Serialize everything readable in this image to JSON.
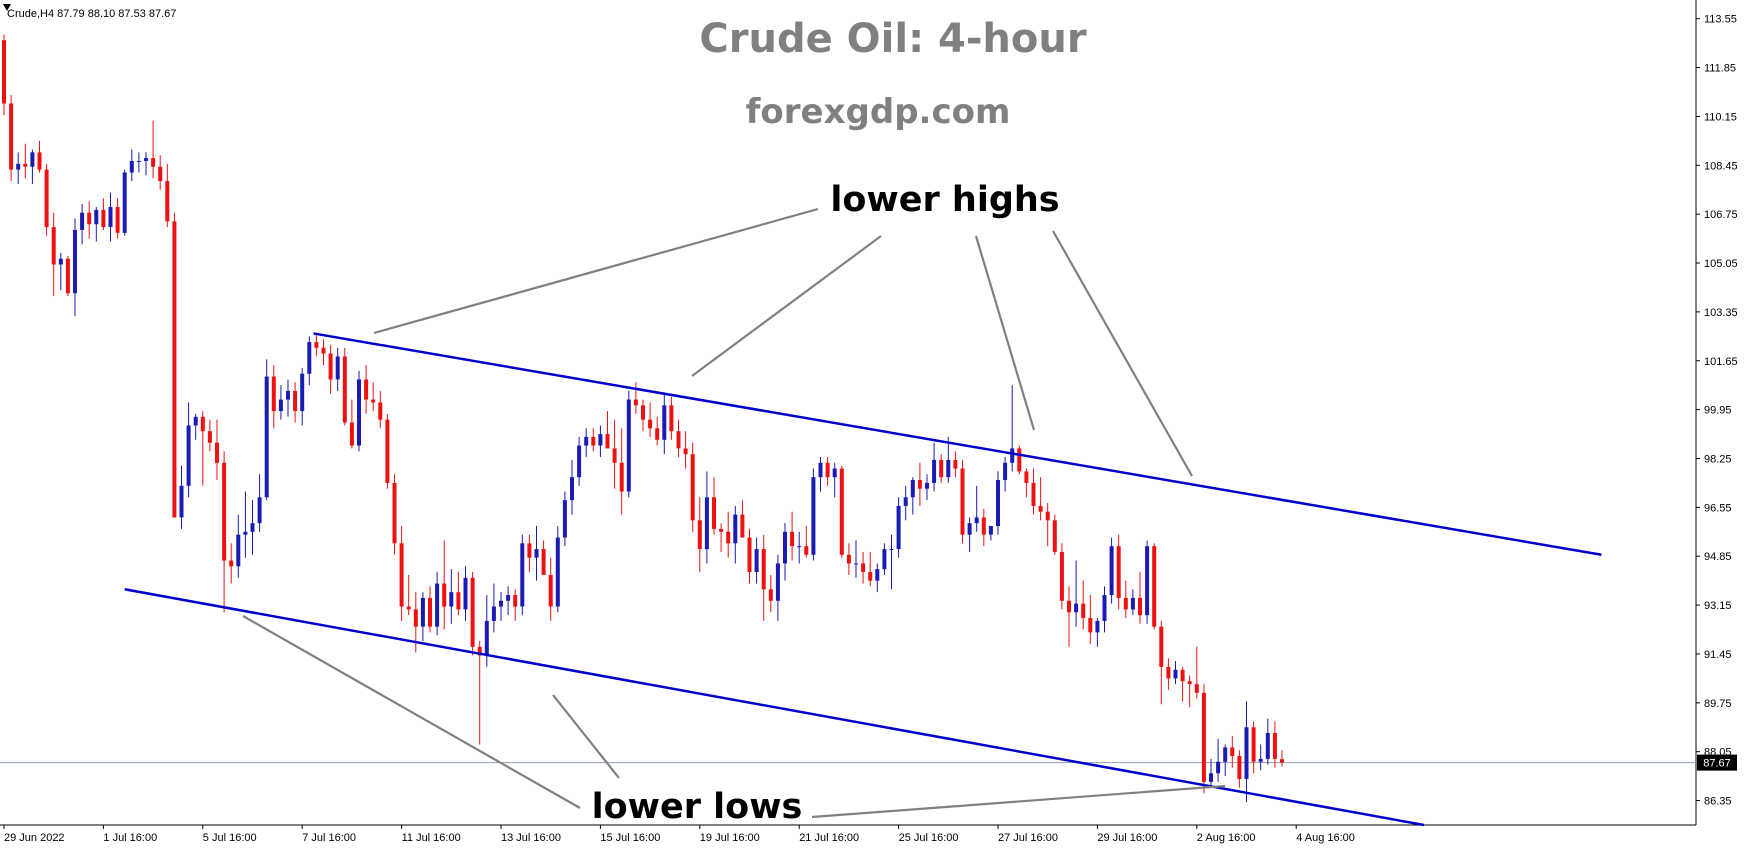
{
  "header": {
    "info_label": "Crude,H4  87.79 88.10 87.53 87.67",
    "title": "Crude Oil: 4-hour",
    "subtitle": "forexgdp.com"
  },
  "annotations": {
    "top_label": "lower highs",
    "bottom_label": "lower lows"
  },
  "colors": {
    "bull": "#1a1ab5",
    "bear": "#ee1111",
    "channel": "#0000cc",
    "arrow": "#808080",
    "current_line": "#8ea0b5",
    "price_box": "#000000"
  },
  "chart_data": {
    "type": "candlestick",
    "symbol": "Crude",
    "timeframe": "H4",
    "title": "Crude Oil: 4-hour",
    "subtitle": "forexgdp.com",
    "last_price": "87.67",
    "ylim": [
      85.5,
      114.2
    ],
    "y_ticks": [
      "113.55",
      "111.85",
      "110.15",
      "108.45",
      "106.75",
      "105.05",
      "103.35",
      "101.65",
      "99.95",
      "98.25",
      "96.55",
      "94.85",
      "93.15",
      "91.45",
      "89.75",
      "88.05",
      "86.35"
    ],
    "x_ticks": [
      "29 Jun 2022",
      "1 Jul 16:00",
      "5 Jul 16:00",
      "7 Jul 16:00",
      "11 Jul 16:00",
      "13 Jul 16:00",
      "15 Jul 16:00",
      "19 Jul 16:00",
      "21 Jul 16:00",
      "25 Jul 16:00",
      "27 Jul 16:00",
      "29 Jul 16:00",
      "2 Aug 16:00",
      "4 Aug 16:00"
    ],
    "bars_per_day": 6,
    "ohlc": [
      [
        112.8,
        113.0,
        110.2,
        110.6
      ],
      [
        110.6,
        110.9,
        107.9,
        108.3
      ],
      [
        108.3,
        108.9,
        107.8,
        108.5
      ],
      [
        108.5,
        109.2,
        108.0,
        108.4
      ],
      [
        108.4,
        109.0,
        107.8,
        108.9
      ],
      [
        108.9,
        109.3,
        108.2,
        108.3
      ],
      [
        108.3,
        108.5,
        106.0,
        106.3
      ],
      [
        106.3,
        106.8,
        103.9,
        105.0
      ],
      [
        105.0,
        105.4,
        104.1,
        105.2
      ],
      [
        105.2,
        105.3,
        103.9,
        104.0
      ],
      [
        104.0,
        106.6,
        103.2,
        106.2
      ],
      [
        106.2,
        107.1,
        105.7,
        106.8
      ],
      [
        106.8,
        107.2,
        105.9,
        106.4
      ],
      [
        106.4,
        107.0,
        105.8,
        106.9
      ],
      [
        106.9,
        107.3,
        106.2,
        106.3
      ],
      [
        106.3,
        107.5,
        105.8,
        107.0
      ],
      [
        107.0,
        107.3,
        105.9,
        106.1
      ],
      [
        106.1,
        108.3,
        106.0,
        108.2
      ],
      [
        108.2,
        109.0,
        107.9,
        108.6
      ],
      [
        108.6,
        108.9,
        108.2,
        108.6
      ],
      [
        108.6,
        108.9,
        108.1,
        108.7
      ],
      [
        108.7,
        110.0,
        108.0,
        108.4
      ],
      [
        108.4,
        108.8,
        107.6,
        107.9
      ],
      [
        107.9,
        108.5,
        106.3,
        106.5
      ],
      [
        106.5,
        106.8,
        96.2,
        96.2
      ],
      [
        96.2,
        98.0,
        95.8,
        97.3
      ],
      [
        97.3,
        100.2,
        96.9,
        99.4
      ],
      [
        99.4,
        99.8,
        98.9,
        99.7
      ],
      [
        99.7,
        99.9,
        97.3,
        99.2
      ],
      [
        99.2,
        99.6,
        98.5,
        98.8
      ],
      [
        98.8,
        99.6,
        97.5,
        98.1
      ],
      [
        98.1,
        98.5,
        92.9,
        94.7
      ],
      [
        94.7,
        95.3,
        93.9,
        94.5
      ],
      [
        94.5,
        96.3,
        94.1,
        95.6
      ],
      [
        95.6,
        97.1,
        94.8,
        95.7
      ],
      [
        95.7,
        96.8,
        94.9,
        96.0
      ],
      [
        96.0,
        97.7,
        95.7,
        96.9
      ],
      [
        96.9,
        101.7,
        96.8,
        101.1
      ],
      [
        101.1,
        101.5,
        99.3,
        99.9
      ],
      [
        99.9,
        100.8,
        99.6,
        100.3
      ],
      [
        100.3,
        101.0,
        99.7,
        100.6
      ],
      [
        100.6,
        100.9,
        99.5,
        99.9
      ],
      [
        99.9,
        101.4,
        99.4,
        101.2
      ],
      [
        101.2,
        102.5,
        100.8,
        102.3
      ],
      [
        102.3,
        102.6,
        101.8,
        102.1
      ],
      [
        102.1,
        102.4,
        101.5,
        101.9
      ],
      [
        101.9,
        102.2,
        100.5,
        101.0
      ],
      [
        101.0,
        102.1,
        100.6,
        101.8
      ],
      [
        101.8,
        102.1,
        99.4,
        99.5
      ],
      [
        99.5,
        100.3,
        98.6,
        98.7
      ],
      [
        98.7,
        101.3,
        98.5,
        101.0
      ],
      [
        101.0,
        101.5,
        99.8,
        100.3
      ],
      [
        100.3,
        100.9,
        99.9,
        100.2
      ],
      [
        100.2,
        100.6,
        99.3,
        99.6
      ],
      [
        99.6,
        99.8,
        97.2,
        97.4
      ],
      [
        97.4,
        97.7,
        94.9,
        95.3
      ],
      [
        95.3,
        95.9,
        92.6,
        93.1
      ],
      [
        93.1,
        94.2,
        92.8,
        93.0
      ],
      [
        93.0,
        93.6,
        91.5,
        92.4
      ],
      [
        92.4,
        93.6,
        91.9,
        93.4
      ],
      [
        93.4,
        93.8,
        92.2,
        92.4
      ],
      [
        92.4,
        94.3,
        92.1,
        93.9
      ],
      [
        93.9,
        95.4,
        92.3,
        93.1
      ],
      [
        93.1,
        94.4,
        92.5,
        93.6
      ],
      [
        93.6,
        94.3,
        92.8,
        93.0
      ],
      [
        93.0,
        94.5,
        92.6,
        94.1
      ],
      [
        94.1,
        94.3,
        91.4,
        91.7
      ],
      [
        91.7,
        91.9,
        88.3,
        91.4
      ],
      [
        91.4,
        93.5,
        91.0,
        92.6
      ],
      [
        92.6,
        93.9,
        92.2,
        93.1
      ],
      [
        93.1,
        93.6,
        92.6,
        93.3
      ],
      [
        93.3,
        93.8,
        92.8,
        93.5
      ],
      [
        93.5,
        93.7,
        92.6,
        93.1
      ],
      [
        93.1,
        95.6,
        92.8,
        95.3
      ],
      [
        95.3,
        95.6,
        94.3,
        94.8
      ],
      [
        94.8,
        95.9,
        94.0,
        95.1
      ],
      [
        95.1,
        95.4,
        94.3,
        94.2
      ],
      [
        94.2,
        94.8,
        92.6,
        93.1
      ],
      [
        93.1,
        95.9,
        92.9,
        95.5
      ],
      [
        95.5,
        97.1,
        95.2,
        96.8
      ],
      [
        96.8,
        98.2,
        96.3,
        97.6
      ],
      [
        97.6,
        99.0,
        97.3,
        98.7
      ],
      [
        98.7,
        99.3,
        98.3,
        99.0
      ],
      [
        99.0,
        99.3,
        98.5,
        98.7
      ],
      [
        98.7,
        99.4,
        98.3,
        99.1
      ],
      [
        99.1,
        99.9,
        98.8,
        98.6
      ],
      [
        98.6,
        99.6,
        97.2,
        98.1
      ],
      [
        98.1,
        99.3,
        96.3,
        97.1
      ],
      [
        97.1,
        100.6,
        96.9,
        100.3
      ],
      [
        100.3,
        100.9,
        99.8,
        100.1
      ],
      [
        100.1,
        100.3,
        99.2,
        99.6
      ],
      [
        99.6,
        100.2,
        99.0,
        99.3
      ],
      [
        99.3,
        99.7,
        98.7,
        98.9
      ],
      [
        98.9,
        100.5,
        98.4,
        100.1
      ],
      [
        100.1,
        100.4,
        98.9,
        99.2
      ],
      [
        99.2,
        99.6,
        98.3,
        98.6
      ],
      [
        98.6,
        99.2,
        97.9,
        98.4
      ],
      [
        98.4,
        98.8,
        95.7,
        96.1
      ],
      [
        96.1,
        96.9,
        94.3,
        95.1
      ],
      [
        95.1,
        97.8,
        94.6,
        96.9
      ],
      [
        96.9,
        97.6,
        95.6,
        95.8
      ],
      [
        95.8,
        96.0,
        95.0,
        95.7
      ],
      [
        95.7,
        96.4,
        94.8,
        95.3
      ],
      [
        95.3,
        96.6,
        94.6,
        96.3
      ],
      [
        96.3,
        96.8,
        95.5,
        95.5
      ],
      [
        95.5,
        95.8,
        93.9,
        94.3
      ],
      [
        94.3,
        95.5,
        93.9,
        95.1
      ],
      [
        95.1,
        95.6,
        92.6,
        93.7
      ],
      [
        93.7,
        94.2,
        92.9,
        93.3
      ],
      [
        93.3,
        94.9,
        92.6,
        94.6
      ],
      [
        94.6,
        96.0,
        94.0,
        95.7
      ],
      [
        95.7,
        96.4,
        94.7,
        95.2
      ],
      [
        95.2,
        95.7,
        94.6,
        95.2
      ],
      [
        95.2,
        95.9,
        94.8,
        94.9
      ],
      [
        94.9,
        97.9,
        94.7,
        97.6
      ],
      [
        97.6,
        98.3,
        97.1,
        98.1
      ],
      [
        98.1,
        98.3,
        97.3,
        97.6
      ],
      [
        97.6,
        98.1,
        96.9,
        97.9
      ],
      [
        97.9,
        98.0,
        94.8,
        94.9
      ],
      [
        94.9,
        95.3,
        94.2,
        94.6
      ],
      [
        94.6,
        95.4,
        94.1,
        94.6
      ],
      [
        94.6,
        95.0,
        93.9,
        94.3
      ],
      [
        94.3,
        95.0,
        93.8,
        94.0
      ],
      [
        94.0,
        94.6,
        93.6,
        94.4
      ],
      [
        94.4,
        95.3,
        94.2,
        95.1
      ],
      [
        95.1,
        95.6,
        93.7,
        95.1
      ],
      [
        95.1,
        96.9,
        94.8,
        96.6
      ],
      [
        96.6,
        97.3,
        96.1,
        96.9
      ],
      [
        96.9,
        97.6,
        96.3,
        97.5
      ],
      [
        97.5,
        98.1,
        96.6,
        97.2
      ],
      [
        97.2,
        97.7,
        96.8,
        97.4
      ],
      [
        97.4,
        98.8,
        97.1,
        98.2
      ],
      [
        98.2,
        98.4,
        97.4,
        97.6
      ],
      [
        97.6,
        99.0,
        97.4,
        98.2
      ],
      [
        98.2,
        98.5,
        97.6,
        97.9
      ],
      [
        97.9,
        98.2,
        95.3,
        95.6
      ],
      [
        95.6,
        96.2,
        95.0,
        96.0
      ],
      [
        96.0,
        97.3,
        95.7,
        96.2
      ],
      [
        96.2,
        96.5,
        95.2,
        95.6
      ],
      [
        95.6,
        95.9,
        95.4,
        95.9
      ],
      [
        95.9,
        97.8,
        95.6,
        97.5
      ],
      [
        97.5,
        98.3,
        97.1,
        98.1
      ],
      [
        98.1,
        100.8,
        97.8,
        98.6
      ],
      [
        98.6,
        98.7,
        97.7,
        97.8
      ],
      [
        97.8,
        97.9,
        96.9,
        97.4
      ],
      [
        97.4,
        97.9,
        96.3,
        96.6
      ],
      [
        96.6,
        97.6,
        96.1,
        96.4
      ],
      [
        96.4,
        96.7,
        95.2,
        96.1
      ],
      [
        96.1,
        96.3,
        94.9,
        95.0
      ],
      [
        95.0,
        95.3,
        93.0,
        93.3
      ],
      [
        93.3,
        93.8,
        91.7,
        92.9
      ],
      [
        92.9,
        94.7,
        92.4,
        93.2
      ],
      [
        93.2,
        94.0,
        92.3,
        92.7
      ],
      [
        92.7,
        93.5,
        91.8,
        92.2
      ],
      [
        92.2,
        92.7,
        91.7,
        92.6
      ],
      [
        92.6,
        93.8,
        92.2,
        93.5
      ],
      [
        93.5,
        95.5,
        93.2,
        95.2
      ],
      [
        95.2,
        95.6,
        93.0,
        93.4
      ],
      [
        93.4,
        94.0,
        92.7,
        93.0
      ],
      [
        93.0,
        93.7,
        92.8,
        93.4
      ],
      [
        93.4,
        94.3,
        92.5,
        92.8
      ],
      [
        92.8,
        95.4,
        92.5,
        95.2
      ],
      [
        95.2,
        95.3,
        92.3,
        92.4
      ],
      [
        92.4,
        92.6,
        89.7,
        91.0
      ],
      [
        91.0,
        91.3,
        90.2,
        90.6
      ],
      [
        90.6,
        91.2,
        90.4,
        90.9
      ],
      [
        90.9,
        91.0,
        89.8,
        90.5
      ],
      [
        90.5,
        90.7,
        89.6,
        90.4
      ],
      [
        90.4,
        91.7,
        89.9,
        90.1
      ],
      [
        90.1,
        90.4,
        86.6,
        87.0
      ],
      [
        87.0,
        87.8,
        86.8,
        87.3
      ],
      [
        87.3,
        88.5,
        87.0,
        87.7
      ],
      [
        87.7,
        88.3,
        87.2,
        88.2
      ],
      [
        88.2,
        88.6,
        87.5,
        87.9
      ],
      [
        87.9,
        88.1,
        86.8,
        87.1
      ],
      [
        87.1,
        89.8,
        86.3,
        88.9
      ],
      [
        88.9,
        89.1,
        87.3,
        87.7
      ],
      [
        87.7,
        88.3,
        87.4,
        87.8
      ],
      [
        87.8,
        89.2,
        87.6,
        88.7
      ],
      [
        88.7,
        89.1,
        87.5,
        87.8
      ],
      [
        87.79,
        88.1,
        87.53,
        87.67
      ]
    ],
    "channel_upper": [
      [
        43.6,
        102.6
      ],
      [
        225,
        94.9
      ]
    ],
    "channel_lower": [
      [
        17,
        93.7
      ],
      [
        200,
        85.5
      ]
    ]
  }
}
